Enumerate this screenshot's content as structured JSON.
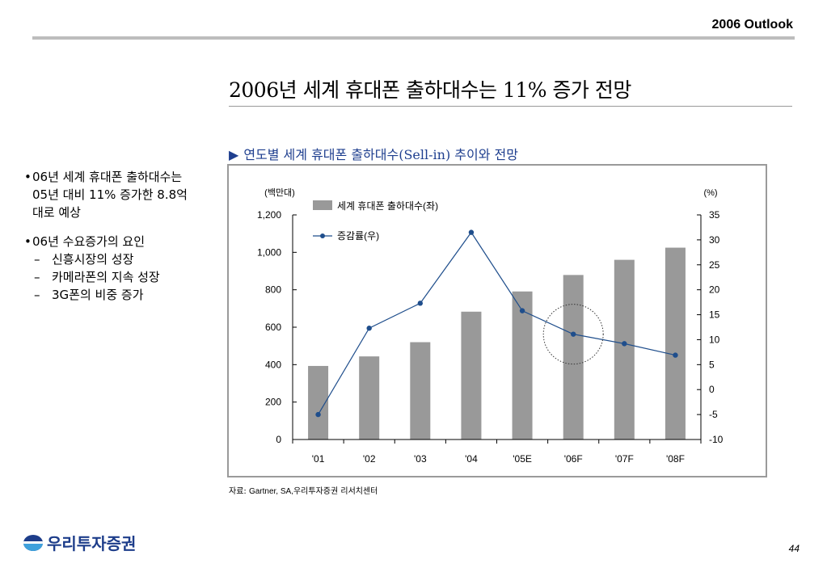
{
  "header": {
    "title": "2006 Outlook"
  },
  "main_title": "2006년 세계 휴대폰 출하대수는 11% 증가 전망",
  "chart_subtitle": "연도별 세계 휴대폰 출하대수(Sell-in) 추이와 전망",
  "bullets": [
    {
      "text": "06년 세계 휴대폰 출하대수는 05년 대비 11% 증가한 8.8억대로 예상",
      "subs": []
    },
    {
      "text": "06년 수요증가의 요인",
      "subs": [
        "신흥시장의 성장",
        "카메라폰의 지속 성장",
        "3G폰의 비중 증가"
      ]
    }
  ],
  "source": {
    "prefix": "자료: ",
    "english": "Gartner, SA,",
    "korean": "우리투자증권 리서치센터"
  },
  "logo": {
    "text": "우리투자증권"
  },
  "page_number": "44",
  "colors": {
    "bar": "#999999",
    "line": "#1f4e8c",
    "title_blue": "#1f3f8f",
    "frame": "#9a9a9a",
    "logo": "#1d3d8a"
  },
  "chart_data": {
    "type": "bar+line",
    "categories": [
      "'01",
      "'02",
      "'03",
      "'04",
      "'05E",
      "'06F",
      "'07F",
      "'08F"
    ],
    "series": [
      {
        "name": "세계 휴대폰 출하대수(좌)",
        "type": "bar",
        "axis": "left",
        "values": [
          393,
          444,
          520,
          683,
          791,
          879,
          960,
          1025
        ]
      },
      {
        "name": "증감률(우)",
        "type": "line",
        "axis": "right",
        "values": [
          -5,
          12.3,
          17.3,
          31.5,
          15.8,
          11.1,
          9.2,
          6.9
        ]
      }
    ],
    "left_axis": {
      "unit": "(백만대)",
      "min": 0,
      "max": 1200,
      "ticks": [
        "0",
        "200",
        "400",
        "600",
        "800",
        "1,000",
        "1,200"
      ]
    },
    "right_axis": {
      "unit": "(%)",
      "min": -10,
      "max": 35,
      "ticks": [
        "-10",
        "-5",
        "0",
        "5",
        "10",
        "15",
        "20",
        "25",
        "30",
        "35"
      ]
    },
    "legend_position": "top-left",
    "annotation": "dotted circle highlighting '06F",
    "grid": false
  }
}
